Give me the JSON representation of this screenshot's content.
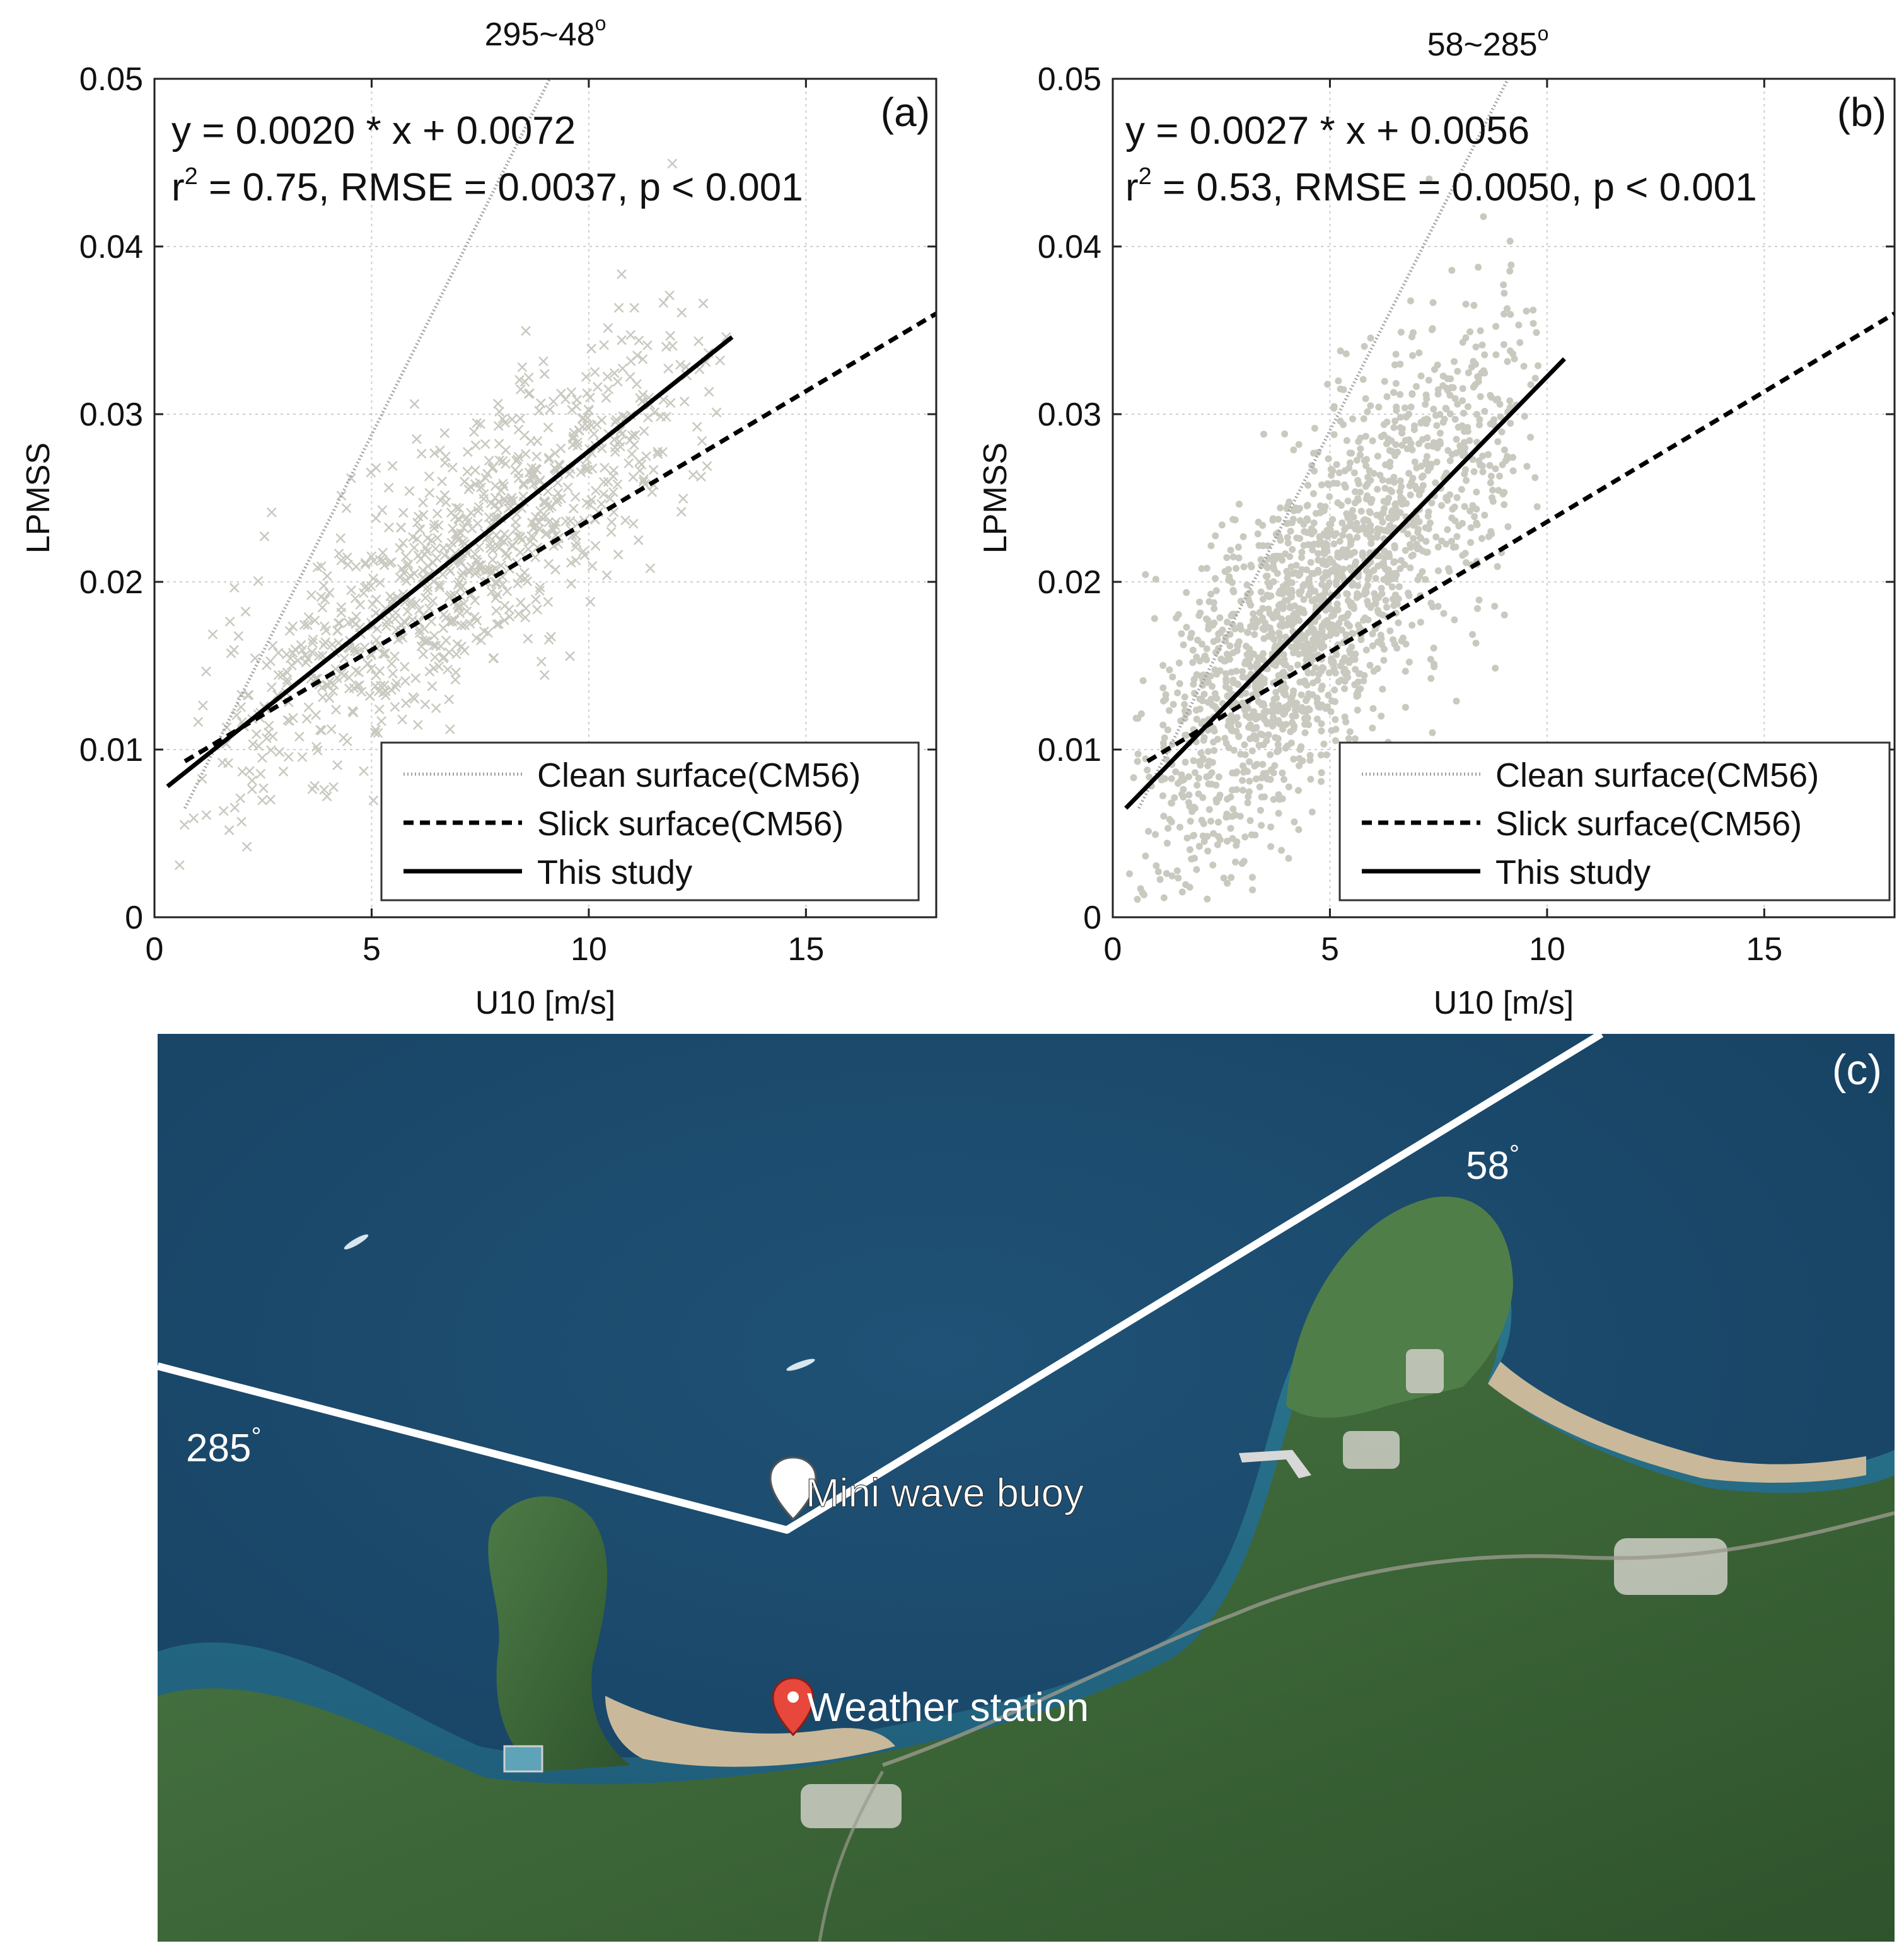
{
  "chart_data": [
    {
      "type": "scatter",
      "panel_label": "(a)",
      "title": "295~48",
      "title_suffix": "o",
      "xlabel": "U10 [m/s]",
      "ylabel": "LPMSS",
      "xlim": [
        0,
        18
      ],
      "ylim": [
        0,
        0.05
      ],
      "x_ticks": [
        0,
        5,
        10,
        15
      ],
      "y_ticks": [
        0,
        0.01,
        0.02,
        0.03,
        0.04,
        0.05
      ],
      "x_tick_labels": [
        "0",
        "5",
        "10",
        "15"
      ],
      "y_tick_labels": [
        "0",
        "0.01",
        "0.02",
        "0.03",
        "0.04",
        "0.05"
      ],
      "grid": true,
      "marker": "x",
      "marker_color": "#c9c9c0",
      "equation": "y = 0.0020 * x + 0.0072",
      "stats_prefix": "r",
      "stats_sup": "2",
      "stats_rest": " = 0.75, RMSE = 0.0037, p < 0.001",
      "legend_position": "bottom-right",
      "legend": [
        "Clean surface(CM56)",
        "Slick surface(CM56)",
        "This study"
      ],
      "series": [
        {
          "name": "Clean surface(CM56)",
          "style": "dotted",
          "color": "#a0a0a0",
          "x": [
            0.7,
            9.1
          ],
          "y": [
            0.0065,
            0.05
          ]
        },
        {
          "name": "Slick surface(CM56)",
          "style": "dashed",
          "color": "#000000",
          "x": [
            0.7,
            18
          ],
          "y": [
            0.0093,
            0.036
          ]
        },
        {
          "name": "This study",
          "style": "solid",
          "color": "#000000",
          "x": [
            0.3,
            13.3
          ],
          "y": [
            0.0078,
            0.0346
          ]
        }
      ],
      "scatter_cloud": {
        "slope": 0.002,
        "intercept": 0.0072,
        "x_range": [
          0.4,
          13.3
        ],
        "x_mode": 7.5,
        "spread": 0.0037,
        "n": 900,
        "seed": 7
      }
    },
    {
      "type": "scatter",
      "panel_label": "(b)",
      "title": "58~285",
      "title_suffix": "o",
      "xlabel": "U10 [m/s]",
      "ylabel": "LPMSS",
      "xlim": [
        0,
        18
      ],
      "ylim": [
        0,
        0.05
      ],
      "x_ticks": [
        0,
        5,
        10,
        15
      ],
      "y_ticks": [
        0,
        0.01,
        0.02,
        0.03,
        0.04,
        0.05
      ],
      "x_tick_labels": [
        "0",
        "5",
        "10",
        "15"
      ],
      "y_tick_labels": [
        "0",
        "0.01",
        "0.02",
        "0.03",
        "0.04",
        "0.05"
      ],
      "grid": true,
      "marker": "dot",
      "marker_color": "#c9c9c0",
      "equation": "y = 0.0027 * x + 0.0056",
      "stats_prefix": "r",
      "stats_sup": "2",
      "stats_rest": " = 0.53, RMSE = 0.0050, p < 0.001",
      "legend_position": "bottom-right",
      "legend": [
        "Clean surface(CM56)",
        "Slick surface(CM56)",
        "This study"
      ],
      "series": [
        {
          "name": "Clean surface(CM56)",
          "style": "dotted",
          "color": "#a0a0a0",
          "x": [
            0.6,
            9.1
          ],
          "y": [
            0.0065,
            0.05
          ]
        },
        {
          "name": "Slick surface(CM56)",
          "style": "dashed",
          "color": "#000000",
          "x": [
            0.8,
            18
          ],
          "y": [
            0.0093,
            0.036
          ]
        },
        {
          "name": "This study",
          "style": "solid",
          "color": "#000000",
          "x": [
            0.3,
            10.4
          ],
          "y": [
            0.0065,
            0.0333
          ]
        }
      ],
      "scatter_cloud": {
        "slope": 0.0027,
        "intercept": 0.0056,
        "x_range": [
          0.3,
          10.2
        ],
        "x_mode": 4.0,
        "spread": 0.005,
        "n": 1800,
        "seed": 13
      }
    }
  ],
  "map": {
    "panel_label": "(c)",
    "sector_labels": {
      "left": "285",
      "right": "58",
      "degree_symbol": "°"
    },
    "markers": [
      {
        "label": "Mini wave buoy",
        "icon": "white-map-pin"
      },
      {
        "label": "Weather station",
        "icon": "red-map-pin"
      }
    ],
    "colors": {
      "sea": "#1c4b6e",
      "land": "#3f6a3c",
      "sector_line": "#ffffff",
      "beach": "#c9b99a"
    }
  }
}
